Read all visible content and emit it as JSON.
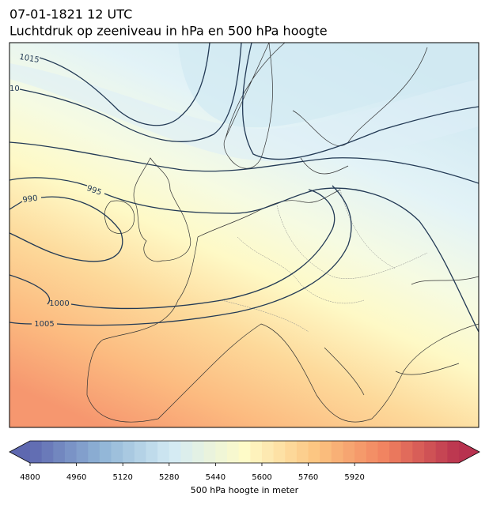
{
  "title": "07-01-1821 12 UTC",
  "subtitle": "Luchtdruk op zeeniveau in hPa en 500 hPa hoogte",
  "isobar_labels": [
    1015,
    10,
    990,
    995,
    1000,
    1005
  ],
  "colorbar": {
    "label": "500 hPa hoogte in meter",
    "lim": [
      4800,
      6280
    ],
    "step": 40,
    "ticks": [
      4800,
      4960,
      5120,
      5280,
      5440,
      5600,
      5760,
      5920
    ],
    "colors": [
      "#5e68b0",
      "#8fb4d6",
      "#d4ebf4",
      "#fefbc8",
      "#fcc580",
      "#f0805f",
      "#b8324f"
    ]
  }
}
